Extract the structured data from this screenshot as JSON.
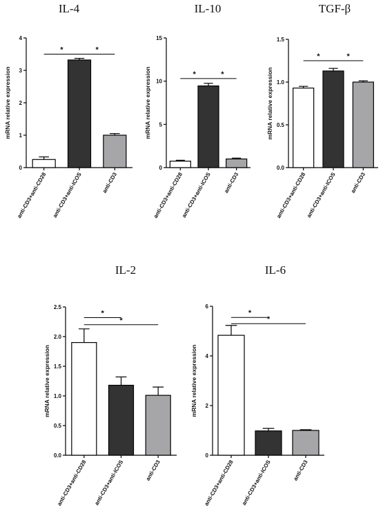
{
  "chart_data": [
    {
      "type": "bar",
      "title": "IL-4",
      "ylabel": "mRNA relative expression",
      "categories": [
        "anti-CD3+anti-CD28",
        "anti-CD3+anti-ICOS",
        "anti-CD3"
      ],
      "values": [
        0.25,
        3.32,
        1.0
      ],
      "errors": [
        0.08,
        0.05,
        0.05
      ],
      "fills": [
        "#ffffff",
        "#333333",
        "#a6a6a8"
      ],
      "ylim": [
        0,
        4
      ],
      "yticks": [
        0,
        1,
        2,
        3,
        4
      ],
      "significance": [
        {
          "label": "*",
          "from": 0,
          "to": 1,
          "y": 3.5
        },
        {
          "label": "*",
          "from": 1,
          "to": 2,
          "y": 3.5
        }
      ]
    },
    {
      "type": "bar",
      "title": "IL-10",
      "ylabel": "mRNA relative expression",
      "categories": [
        "anti-CD3+anti-CD28",
        "anti-CD3+anti-ICOS",
        "anti-CD3"
      ],
      "values": [
        0.75,
        9.45,
        1.0
      ],
      "errors": [
        0.1,
        0.3,
        0.1
      ],
      "fills": [
        "#ffffff",
        "#333333",
        "#a6a6a8"
      ],
      "ylim": [
        0,
        15
      ],
      "yticks": [
        0,
        5,
        10,
        15
      ],
      "significance": [
        {
          "label": "*",
          "from": 0,
          "to": 1,
          "y": 10.3
        },
        {
          "label": "*",
          "from": 1,
          "to": 2,
          "y": 10.3
        }
      ]
    },
    {
      "type": "bar",
      "title": "TGF-β",
      "ylabel": "mRNA relative expression",
      "categories": [
        "anti-CD3+anti-CD28",
        "anti-CD3+anti-ICOS",
        "anti-CD3"
      ],
      "values": [
        0.93,
        1.13,
        1.0
      ],
      "errors": [
        0.02,
        0.03,
        0.015
      ],
      "fills": [
        "#ffffff",
        "#333333",
        "#a6a6a8"
      ],
      "ylim": [
        0,
        1.5
      ],
      "yticks": [
        "0.0",
        "0.5",
        "1.0",
        "1.5"
      ],
      "significance": [
        {
          "label": "*",
          "from": 0,
          "to": 1,
          "y": 1.25
        },
        {
          "label": "*",
          "from": 1,
          "to": 2,
          "y": 1.25
        }
      ]
    },
    {
      "type": "bar",
      "title": "IL-2",
      "ylabel": "mRNA relative expression",
      "categories": [
        "anti-CD3+anti-CD28",
        "anti-CD3+anti-ICOS",
        "anti-CD3"
      ],
      "values": [
        1.9,
        1.18,
        1.01
      ],
      "errors": [
        0.23,
        0.14,
        0.14
      ],
      "fills": [
        "#ffffff",
        "#333333",
        "#a6a6a8"
      ],
      "ylim": [
        0,
        2.5
      ],
      "yticks": [
        "0.0",
        "0.5",
        "1.0",
        "1.5",
        "2.0",
        "2.5"
      ],
      "significance": [
        {
          "label": "*",
          "from": 0,
          "to": 1,
          "y": 2.32
        },
        {
          "label": "*",
          "from": 0,
          "to": 2,
          "y": 2.2
        }
      ]
    },
    {
      "type": "bar",
      "title": "IL-6",
      "ylabel": "mRNA relative expression",
      "categories": [
        "anti-CD3+anti-CD28",
        "anti-CD3+anti-ICOS",
        "anti-CD3"
      ],
      "values": [
        4.83,
        0.98,
        1.0
      ],
      "errors": [
        0.4,
        0.1,
        0.03
      ],
      "fills": [
        "#ffffff",
        "#333333",
        "#a6a6a8"
      ],
      "ylim": [
        0,
        6
      ],
      "yticks": [
        0,
        2,
        4,
        6
      ],
      "significance": [
        {
          "label": "*",
          "from": 0,
          "to": 1,
          "y": 5.55
        },
        {
          "label": "*",
          "from": 0,
          "to": 2,
          "y": 5.3
        }
      ]
    }
  ]
}
